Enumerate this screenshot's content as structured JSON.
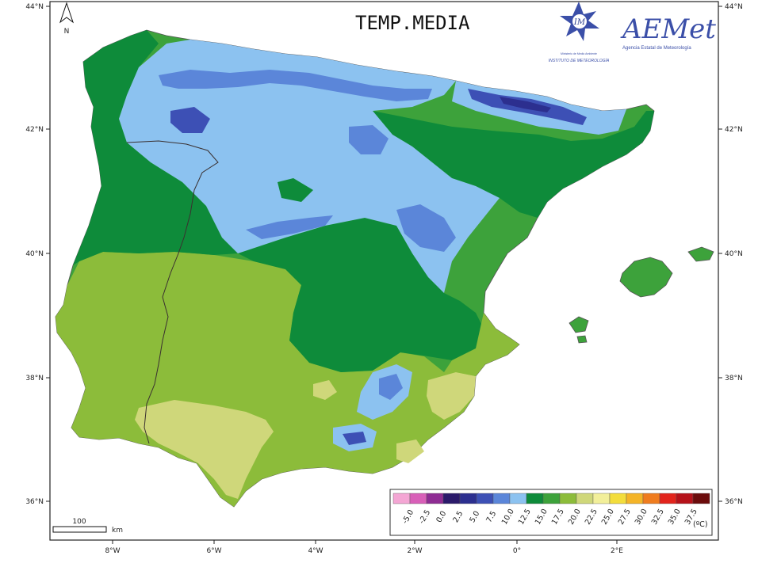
{
  "title": "TEMP.MEDIA",
  "north_label": "N",
  "lat_labels": [
    "44°N",
    "42°N",
    "40°N",
    "38°N",
    "36°N"
  ],
  "lon_labels": [
    "8°W",
    "6°W",
    "4°W",
    "2°W",
    "0°",
    "2°E"
  ],
  "scale_bar": {
    "value": "100",
    "unit": "km"
  },
  "legend": {
    "unit": "(ºC)",
    "values": [
      "-5.0",
      "-2.5",
      "0.0",
      "2.5",
      "5.0",
      "7.5",
      "10.0",
      "12.5",
      "15.0",
      "17.5",
      "20.0",
      "22.5",
      "25.0",
      "27.5",
      "30.0",
      "32.5",
      "35.0",
      "37.5"
    ],
    "colors": [
      "#f4a6d4",
      "#d85fb8",
      "#8e2c93",
      "#2b1a6a",
      "#2c2f8f",
      "#3d50b5",
      "#5b86d9",
      "#8cc2f0",
      "#0e8b3a",
      "#3da23b",
      "#8cbc3a",
      "#cfd77a",
      "#f2ef9a",
      "#f3dd3c",
      "#f4b428",
      "#ef7c1f",
      "#e2241c",
      "#b5121a",
      "#6b0c0c"
    ]
  },
  "logos": {
    "inm_text": "INSTITUTO DE METEOROLOGÍA",
    "inm_small": "Ministerio de Medio Ambiente",
    "inm_mark": "IM",
    "aemet_name": "AEMet",
    "aemet_sub": "Agencia Estatal de Meteorología"
  },
  "map_palette": {
    "sea": "#ffffff",
    "hot_coast": "#cfd77a",
    "warm": "#8cbc3a",
    "mild": "#0e8b3a",
    "cool": "#8cc2f0",
    "cold": "#5b86d9",
    "very_cold": "#3d50b5",
    "coldest": "#2c2f8f"
  }
}
